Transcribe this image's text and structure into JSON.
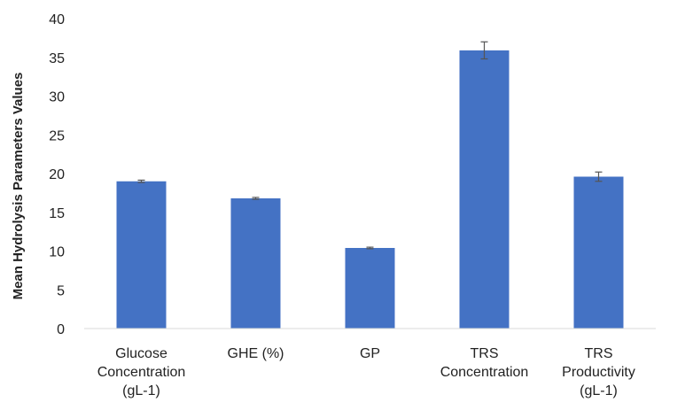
{
  "chart_data": {
    "type": "bar",
    "title": "",
    "xlabel": "",
    "ylabel": "Mean Hydrolysis Parameters Values",
    "ylim": [
      0,
      40
    ],
    "yticks": [
      0,
      5,
      10,
      15,
      20,
      25,
      30,
      35,
      40
    ],
    "grid": false,
    "legend": "none",
    "bar_color": "#4472C4",
    "error_bar_color": "#555555",
    "categories": [
      [
        "Glucose",
        "Concentration",
        "(gL-1)"
      ],
      [
        "GHE (%)"
      ],
      [
        "GP"
      ],
      [
        "TRS",
        "Concentration"
      ],
      [
        "TRS",
        "Productivity",
        "(gL-1)"
      ]
    ],
    "values": [
      19.0,
      16.8,
      10.4,
      35.9,
      19.6
    ],
    "errors": [
      0.15,
      0.12,
      0.1,
      1.1,
      0.6
    ]
  }
}
